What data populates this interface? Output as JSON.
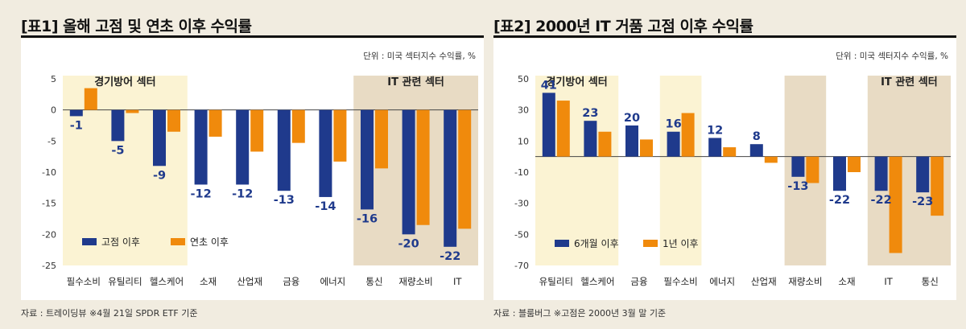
{
  "colors": {
    "series1": "#1f3a8c",
    "series2": "#f08a0c",
    "defensive_bg": "#fbf3d3",
    "it_bg": "#e8dbc4",
    "background": "#f1ece0"
  },
  "panels": [
    {
      "title": "[표1] 올해 고점 및 연초 이후 수익률",
      "unit": "단위 : 미국 섹터지수 수익률, %",
      "source": "자료 : 트레이딩뷰 ※4월 21일 SPDR ETF 기준"
    },
    {
      "title": "[표2] 2000년 IT 거품 고점 이후 수익률",
      "unit": "단위 : 미국 섹터지수 수익률, %",
      "source": "자료 : 블룸버그 ※고점은 2000년 3월 말 기준"
    }
  ],
  "chart_data": [
    {
      "type": "bar",
      "categories": [
        "필수소비",
        "유틸리티",
        "헬스케어",
        "소재",
        "산업재",
        "금융",
        "에너지",
        "통신",
        "재량소비",
        "IT"
      ],
      "series": [
        {
          "name": "고점 이후",
          "values": [
            -1,
            -5,
            -9,
            -12,
            -12,
            -13,
            -14,
            -16,
            -20,
            -22
          ],
          "labeled": true
        },
        {
          "name": "연초 이후",
          "values": [
            3.5,
            -0.5,
            -3.5,
            -4.3,
            -6.7,
            -5.3,
            -8.3,
            -9.4,
            -18.5,
            -19.1
          ],
          "labeled": false
        }
      ],
      "y_ticks": [
        5,
        0,
        -5,
        -10,
        -15,
        -20,
        -25
      ],
      "ylim": [
        -25,
        5
      ],
      "regions": [
        {
          "label": "경기방어 섹터",
          "start": 0,
          "end": 2,
          "style": "defensive"
        },
        {
          "label": "IT 관련 섹터",
          "start": 7,
          "end": 9,
          "style": "it"
        }
      ],
      "legend_position": "bottom-left",
      "grid": false
    },
    {
      "type": "bar",
      "categories": [
        "유틸리티",
        "헬스케어",
        "금융",
        "필수소비",
        "에너지",
        "산업재",
        "재량소비",
        "소재",
        "IT",
        "통신"
      ],
      "series": [
        {
          "name": "6개월 이후",
          "values": [
            41,
            23,
            20,
            16,
            12,
            8,
            -13,
            -22,
            -22,
            -23
          ],
          "labeled": true
        },
        {
          "name": "1년 이후",
          "values": [
            36,
            16,
            11,
            28,
            6,
            -4,
            -17,
            -10,
            -62,
            -38
          ],
          "labeled": false
        }
      ],
      "y_ticks": [
        50,
        30,
        10,
        -10,
        -30,
        -50,
        -70
      ],
      "ylim": [
        -70,
        50
      ],
      "regions": [
        {
          "label": "경기방어 섹터",
          "start": 0,
          "end": 1,
          "style": "defensive"
        },
        {
          "label": "",
          "start": 3,
          "end": 3,
          "style": "defensive"
        },
        {
          "label": "",
          "start": 6,
          "end": 6,
          "style": "it"
        },
        {
          "label": "IT 관련 섹터",
          "start": 8,
          "end": 9,
          "style": "it"
        }
      ],
      "legend_position": "bottom-left",
      "grid": false
    }
  ]
}
